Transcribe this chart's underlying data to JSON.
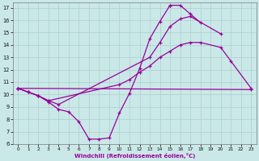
{
  "xlabel": "Windchill (Refroidissement éolien,°C)",
  "bg_color": "#cbe8e8",
  "line_color": "#990099",
  "marker": "+",
  "xlim": [
    -0.5,
    23.5
  ],
  "ylim": [
    6,
    17.4
  ],
  "xticks": [
    0,
    1,
    2,
    3,
    4,
    5,
    6,
    7,
    8,
    9,
    10,
    11,
    12,
    13,
    14,
    15,
    16,
    17,
    18,
    19,
    20,
    21,
    22,
    23
  ],
  "yticks": [
    6,
    7,
    8,
    9,
    10,
    11,
    12,
    13,
    14,
    15,
    16,
    17
  ],
  "grid_color": "#a8d0cc",
  "lines": [
    {
      "x": [
        0,
        1,
        2,
        3,
        4,
        5,
        6,
        7,
        8,
        9,
        10,
        11,
        12,
        13,
        14,
        15,
        15,
        16,
        17,
        18
      ],
      "y": [
        10.5,
        10.2,
        9.9,
        9.4,
        8.8,
        8.6,
        7.8,
        6.4,
        6.4,
        6.5,
        8.5,
        10.1,
        12.1,
        14.5,
        15.9,
        17.2,
        17.2,
        17.2,
        16.5,
        15.8
      ]
    },
    {
      "x": [
        0,
        1,
        2,
        3,
        4,
        13,
        14,
        15,
        16,
        17,
        20
      ],
      "y": [
        10.5,
        10.2,
        9.9,
        9.5,
        9.2,
        13.0,
        14.2,
        15.5,
        16.1,
        16.3,
        14.9
      ]
    },
    {
      "x": [
        0,
        1,
        2,
        3,
        10,
        11,
        12,
        13,
        14,
        15,
        16,
        17,
        18,
        20,
        21,
        23
      ],
      "y": [
        10.5,
        10.2,
        9.9,
        9.5,
        10.8,
        11.2,
        11.8,
        12.3,
        13.0,
        13.5,
        14.0,
        14.2,
        14.2,
        13.8,
        12.7,
        10.5
      ]
    },
    {
      "x": [
        0,
        23
      ],
      "y": [
        10.5,
        10.4
      ]
    }
  ]
}
